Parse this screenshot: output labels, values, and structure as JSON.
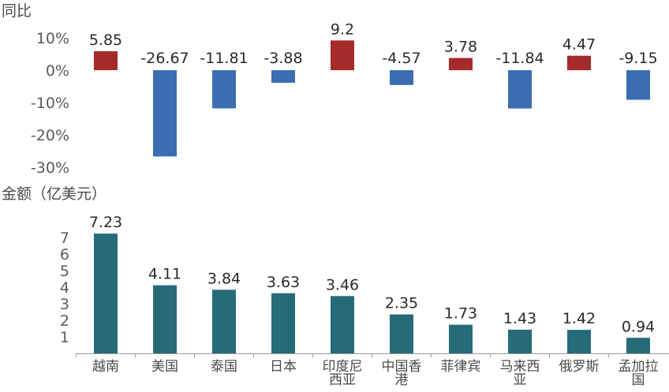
{
  "chart_data": [
    {
      "type": "bar",
      "ylabel": "同比",
      "categories": [
        "越南",
        "美国",
        "泰国",
        "日本",
        "印度尼西亚",
        "中国香港",
        "菲律宾",
        "马来西亚",
        "俄罗斯",
        "孟加拉国"
      ],
      "values": [
        5.85,
        -26.67,
        -11.81,
        -3.88,
        9.2,
        -4.57,
        3.78,
        -11.84,
        4.47,
        -9.15
      ],
      "value_labels": [
        "5.85",
        "-26.67",
        "-11.81",
        "-3.88",
        "9.2",
        "-4.57",
        "3.78",
        "-11.84",
        "4.47",
        "-9.15"
      ],
      "yticks": [
        "10%",
        "0%",
        "-10%",
        "-20%",
        "-30%"
      ],
      "ylim": [
        -30,
        10
      ],
      "colors": {
        "positive": "#a52a2a",
        "negative": "#3a6db1"
      }
    },
    {
      "type": "bar",
      "ylabel": "金额（亿美元）",
      "categories": [
        "越南",
        "美国",
        "泰国",
        "日本",
        "印度尼西亚",
        "中国香港",
        "菲律宾",
        "马来西亚",
        "俄罗斯",
        "孟加拉国"
      ],
      "category_lines": [
        [
          "越南"
        ],
        [
          "美国"
        ],
        [
          "泰国"
        ],
        [
          "日本"
        ],
        [
          "印度尼",
          "西亚"
        ],
        [
          "中国香",
          "港"
        ],
        [
          "菲律宾"
        ],
        [
          "马来西",
          "亚"
        ],
        [
          "俄罗斯"
        ],
        [
          "孟加拉",
          "国"
        ]
      ],
      "values": [
        7.23,
        4.11,
        3.84,
        3.63,
        3.46,
        2.35,
        1.73,
        1.43,
        1.42,
        0.94
      ],
      "value_labels": [
        "7.23",
        "4.11",
        "3.84",
        "3.63",
        "3.46",
        "2.35",
        "1.73",
        "1.43",
        "1.42",
        "0.94"
      ],
      "yticks": [
        "7",
        "6",
        "5",
        "4",
        "3",
        "2",
        "1"
      ],
      "ylim": [
        0,
        7
      ],
      "colors": {
        "bar": "#266b78"
      }
    }
  ]
}
